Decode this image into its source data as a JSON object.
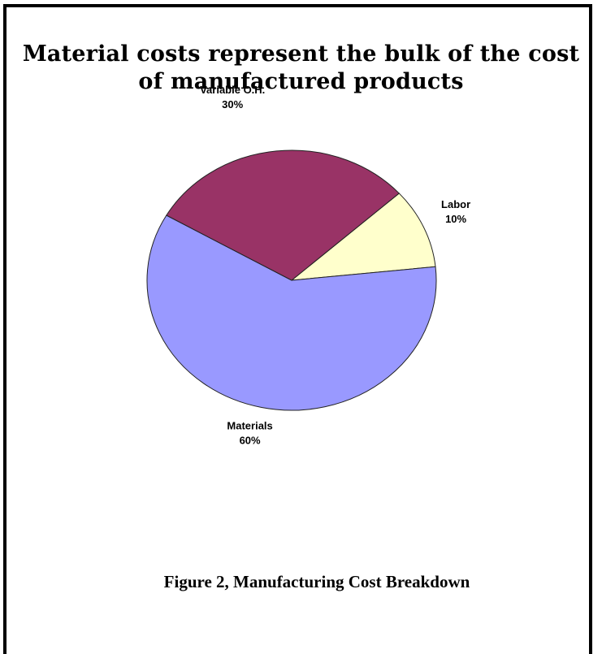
{
  "chart_data": {
    "type": "pie",
    "title_lines": [
      "Material costs represent the bulk of the cost",
      "of manufactured products"
    ],
    "slices": [
      {
        "category": "Labor",
        "percent_label": "10%",
        "value": 10,
        "color": "#ffffcc"
      },
      {
        "category": "Materials",
        "percent_label": "60%",
        "value": 60,
        "color": "#9999ff"
      },
      {
        "category": "Variable O.H.",
        "percent_label": "30%",
        "value": 30,
        "color": "#993366"
      }
    ],
    "legend": "none"
  },
  "caption": "Figure 2, Manufacturing  Cost Breakdown"
}
